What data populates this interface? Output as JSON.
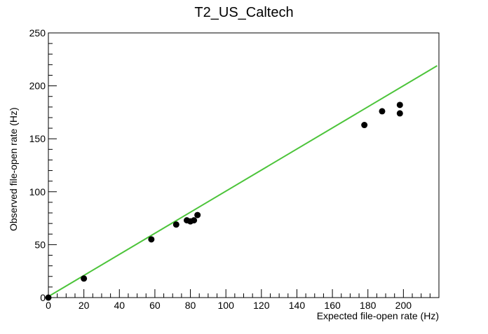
{
  "chart_data": {
    "type": "scatter",
    "title": "T2_US_Caltech",
    "xlabel": "Expected file-open rate (Hz)",
    "ylabel": "Observed file-open rate (Hz)",
    "xlim": [
      0,
      220
    ],
    "ylim": [
      0,
      250
    ],
    "xticks": [
      0,
      20,
      40,
      60,
      80,
      100,
      120,
      140,
      160,
      180,
      200
    ],
    "yticks": [
      0,
      50,
      100,
      150,
      200,
      250
    ],
    "grid": false,
    "legend": "none",
    "series": [
      {
        "kind": "points",
        "color": "#000000",
        "x": [
          0,
          20,
          58,
          72,
          78,
          80,
          82,
          84,
          178,
          188,
          198,
          198
        ],
        "y": [
          0,
          18,
          55,
          69,
          73,
          72,
          73,
          78,
          163,
          176,
          182,
          174
        ]
      },
      {
        "kind": "line",
        "color": "#4cc43a",
        "x": [
          0,
          219
        ],
        "y": [
          1,
          219
        ]
      }
    ]
  }
}
